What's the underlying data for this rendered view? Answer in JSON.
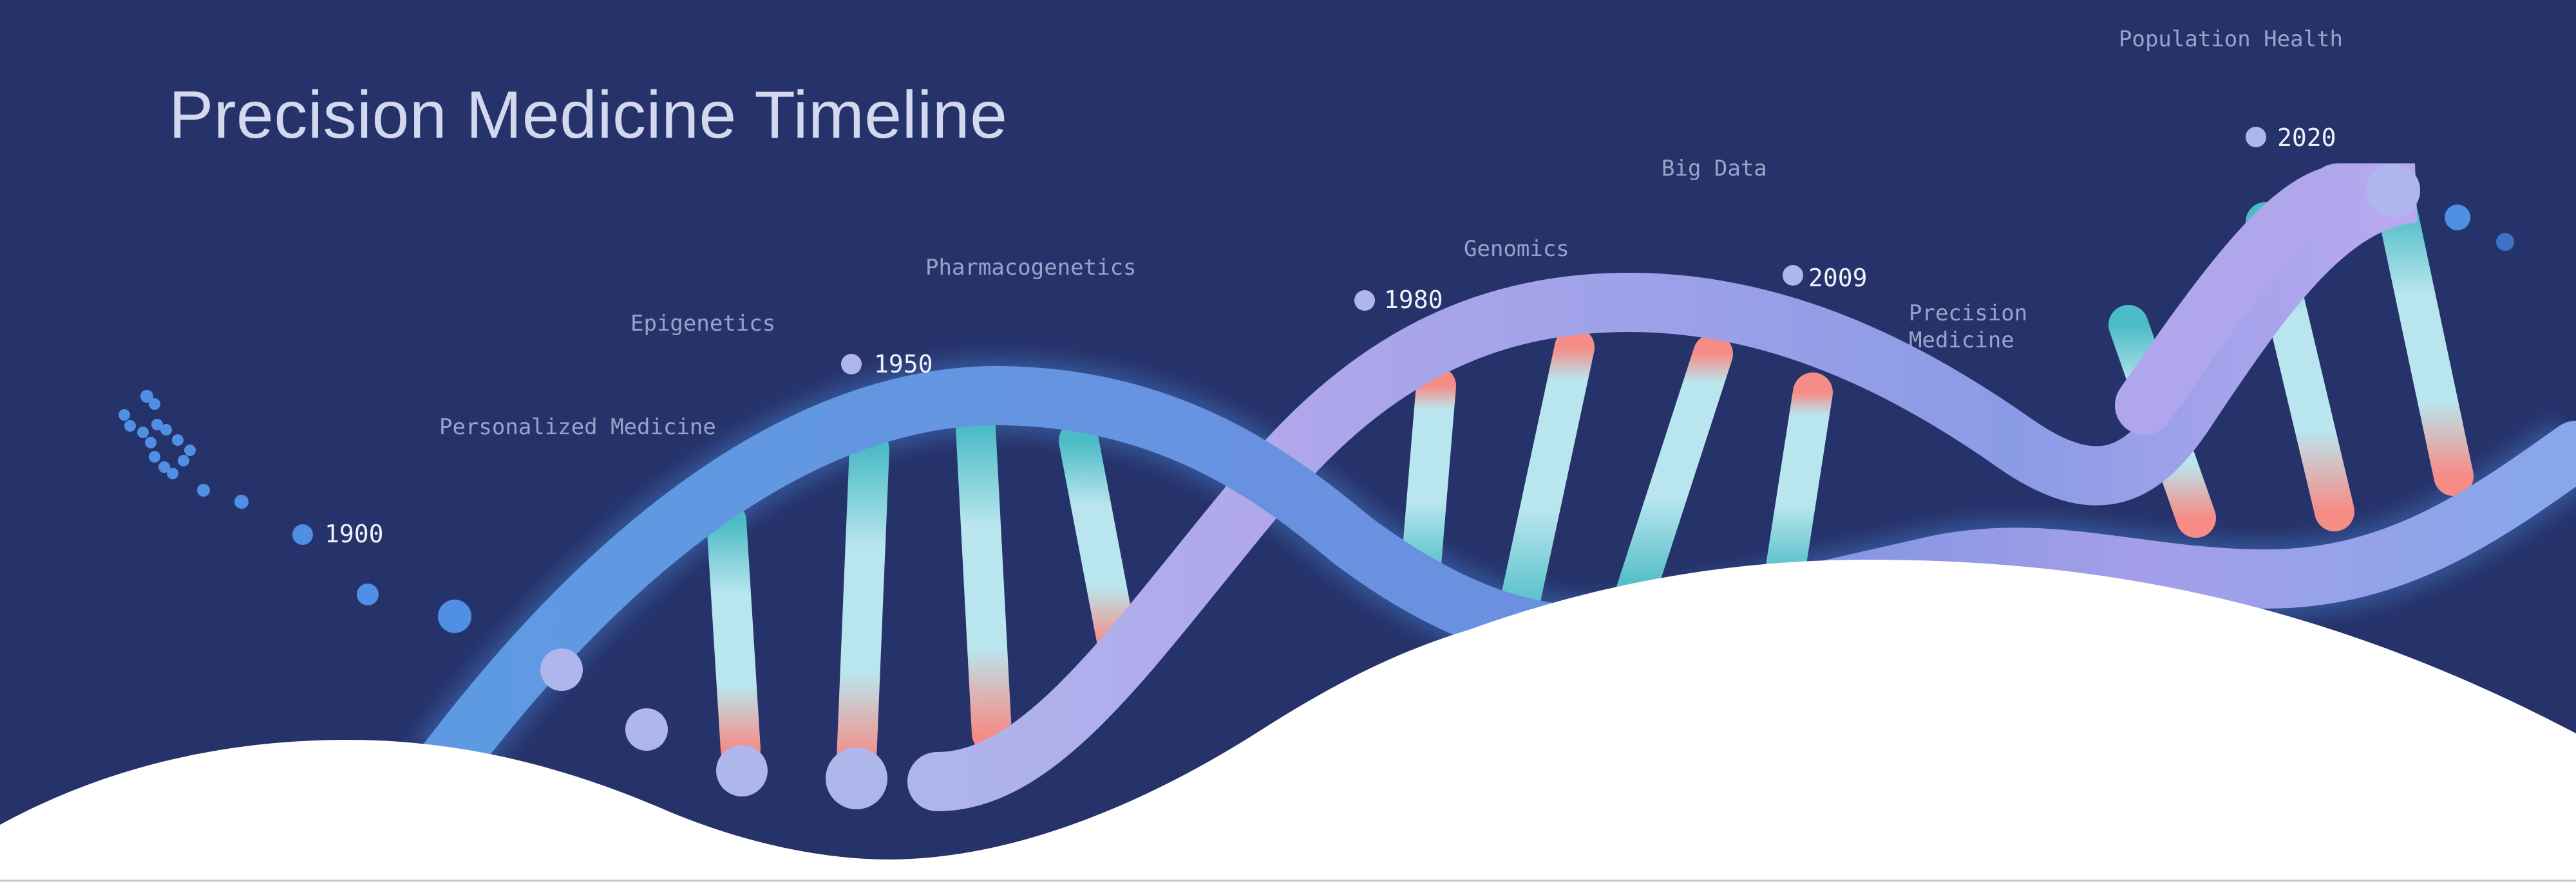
{
  "title": "Precision Medicine Timeline",
  "years": [
    "1900",
    "1950",
    "1980",
    "2009",
    "2020"
  ],
  "topics": [
    "Personalized Medicine",
    "Epigenetics",
    "Pharmacogenetics",
    "Genomics",
    "Big Data",
    "Precision\nMedicine",
    "Population Health"
  ],
  "colors": {
    "background": "#26336a",
    "strand_blue": "#5d9be2",
    "strand_lavender": "#b1a7eb",
    "strand_periwinkle": "#aeb6ec",
    "rung_teal": "#4bbbc6",
    "rung_ice": "#b9e6ee",
    "rung_coral": "#f68c86",
    "hill": "#ffffff"
  }
}
